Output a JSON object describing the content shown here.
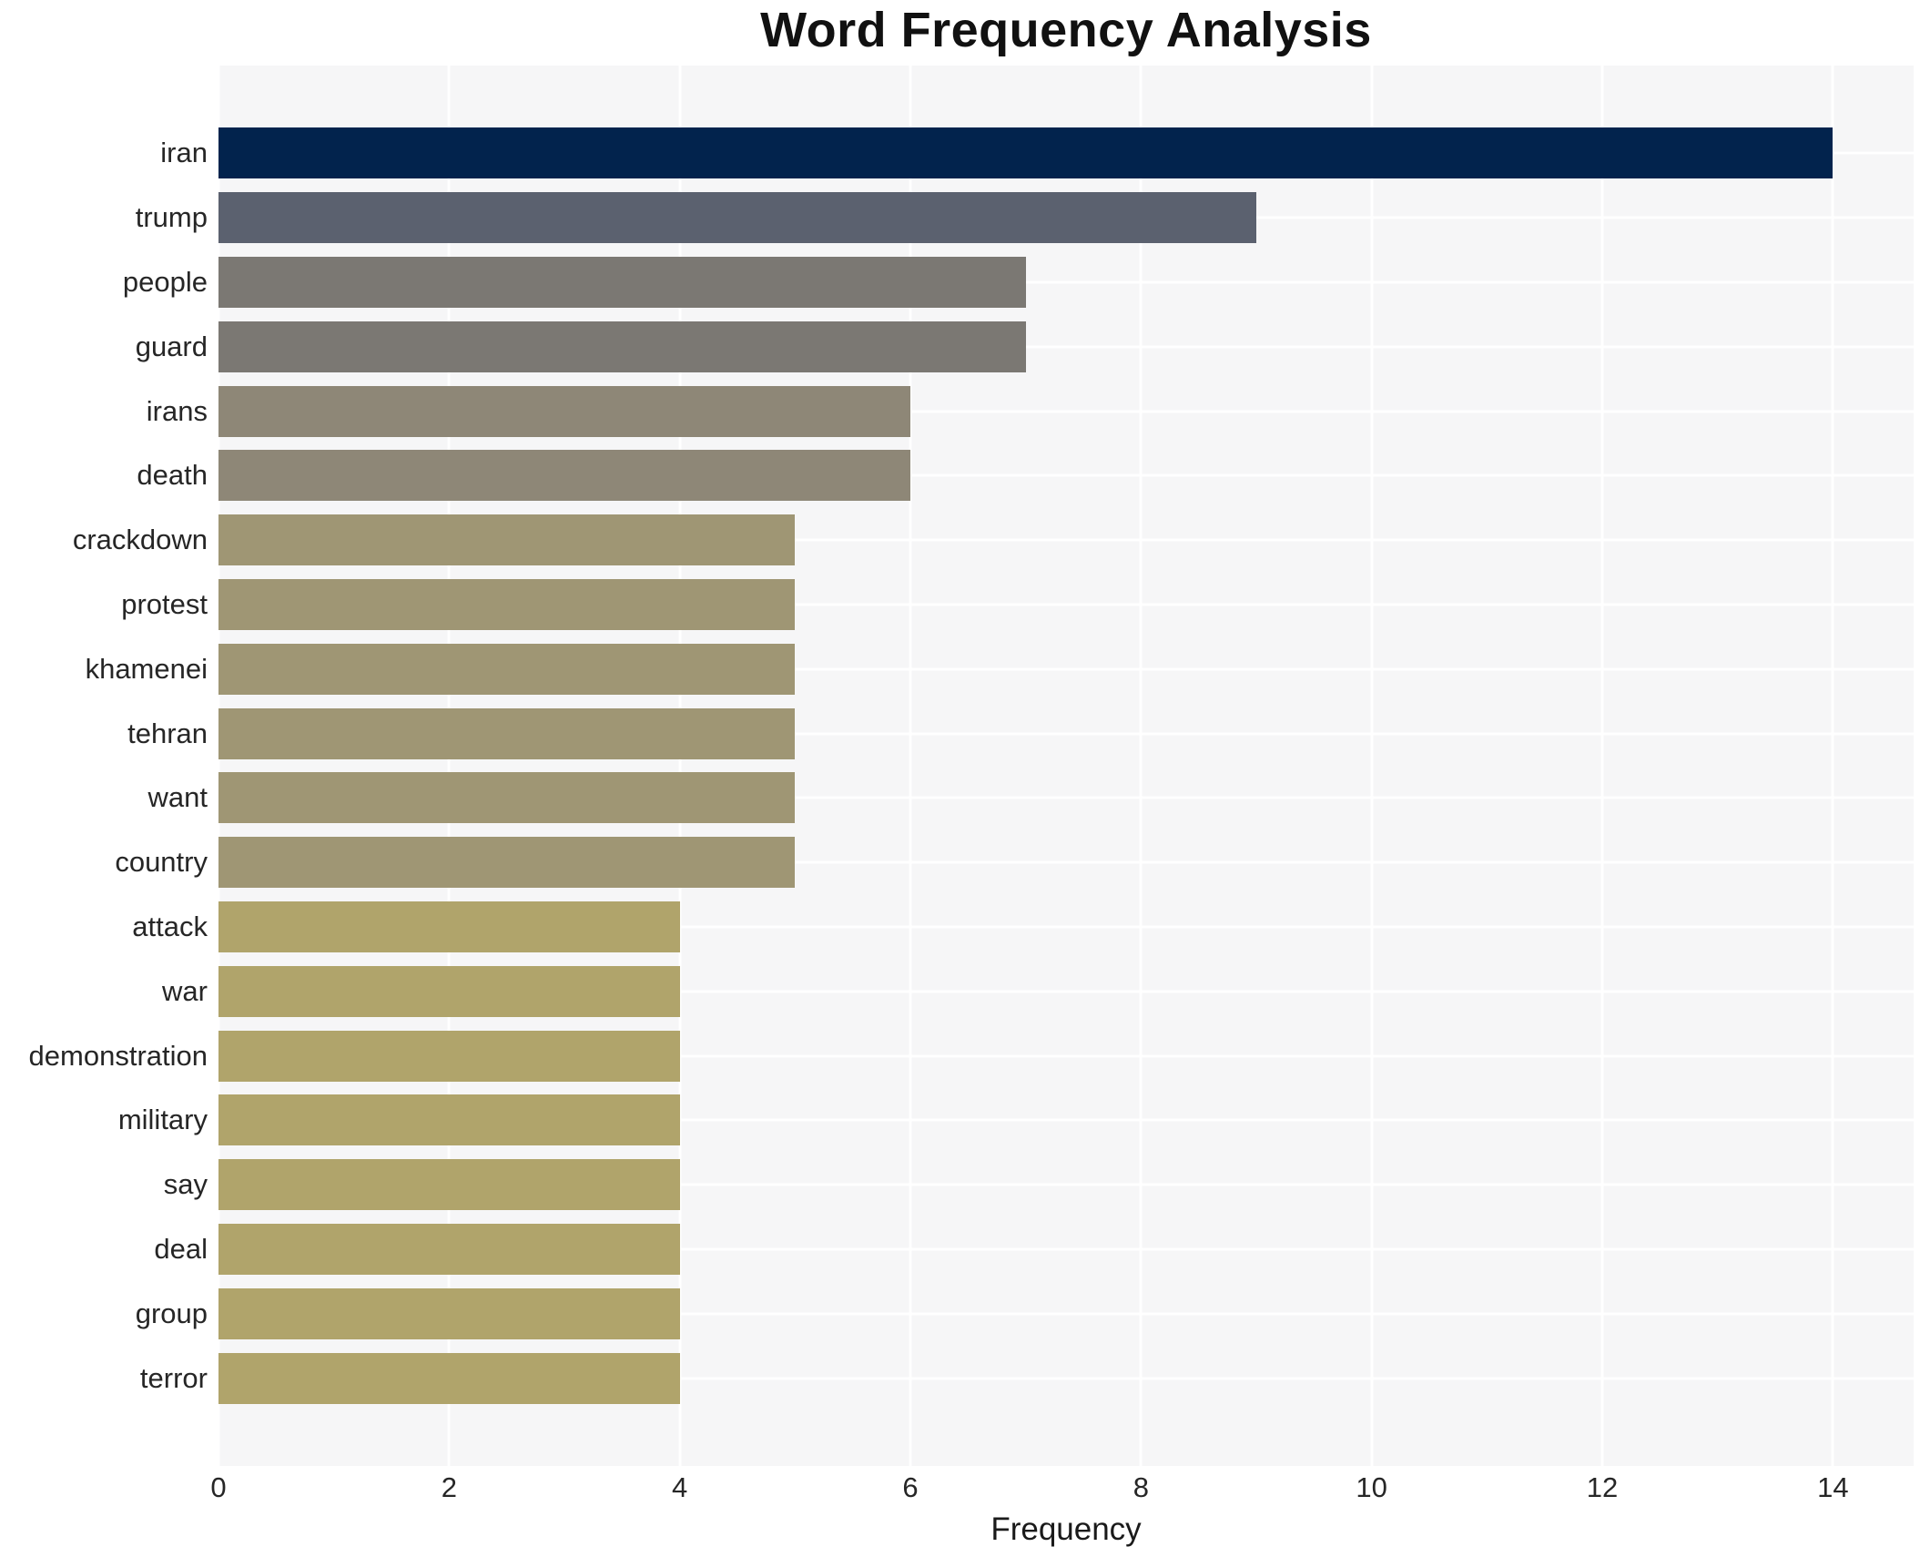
{
  "page": {
    "background": "#ffffff"
  },
  "chart_data": {
    "type": "bar",
    "orientation": "horizontal",
    "title": "Word Frequency Analysis",
    "xlabel": "Frequency",
    "ylabel": "",
    "categories": [
      "iran",
      "trump",
      "people",
      "guard",
      "irans",
      "death",
      "crackdown",
      "protest",
      "khamenei",
      "tehran",
      "want",
      "country",
      "attack",
      "war",
      "demonstration",
      "military",
      "say",
      "deal",
      "group",
      "terror"
    ],
    "values": [
      14,
      9,
      7,
      7,
      6,
      6,
      5,
      5,
      5,
      5,
      5,
      5,
      4,
      4,
      4,
      4,
      4,
      4,
      4,
      4
    ],
    "bar_colors": [
      "#02234d",
      "#5b616f",
      "#7b7873",
      "#7b7873",
      "#8e8777",
      "#8e8777",
      "#9f9674",
      "#9f9674",
      "#9f9674",
      "#9f9674",
      "#9f9674",
      "#9f9674",
      "#b0a46b",
      "#b0a46b",
      "#b0a46b",
      "#b0a46b",
      "#b0a46b",
      "#b0a46b",
      "#b0a46b",
      "#b0a46b"
    ],
    "xlim": [
      0,
      14.7
    ],
    "xticks": [
      0,
      2,
      4,
      6,
      8,
      10,
      12,
      14
    ],
    "grid": "on",
    "legend": "none",
    "plot_background": "#f6f6f7",
    "grid_color": "#ffffff",
    "title_color": "#111111",
    "tick_color": "#262626"
  }
}
